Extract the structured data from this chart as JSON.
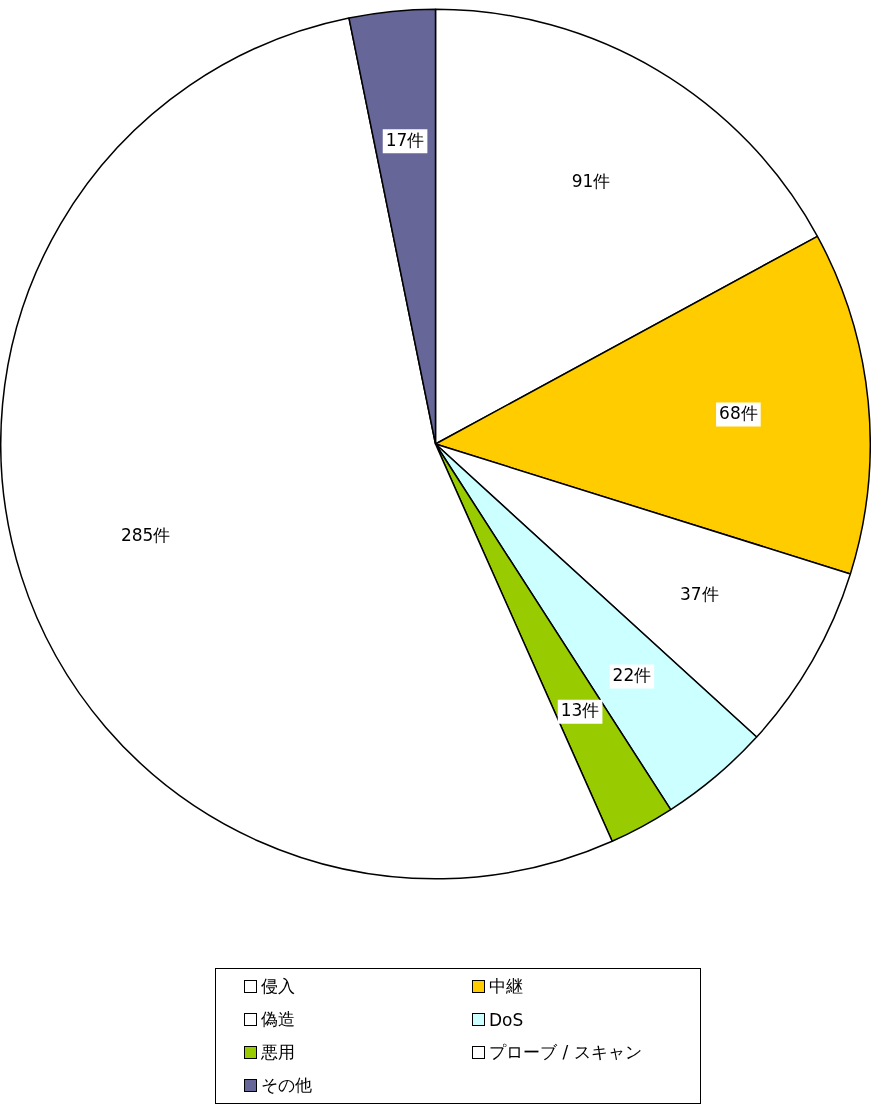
{
  "chart_data": {
    "type": "pie",
    "categories": [
      "侵入",
      "中継",
      "偽造",
      "DoS",
      "悪用",
      "プローブ / スキャン",
      "その他"
    ],
    "values": [
      91,
      68,
      37,
      22,
      13,
      285,
      17
    ],
    "colors": [
      "#ffffff",
      "#ffcc00",
      "#ffffff",
      "#ccffff",
      "#99cc00",
      "#ffffff",
      "#666699"
    ],
    "value_labels": [
      "91件",
      "68件",
      "37件",
      "22件",
      "13件",
      "285件",
      "17件"
    ],
    "legend": "bottom"
  }
}
